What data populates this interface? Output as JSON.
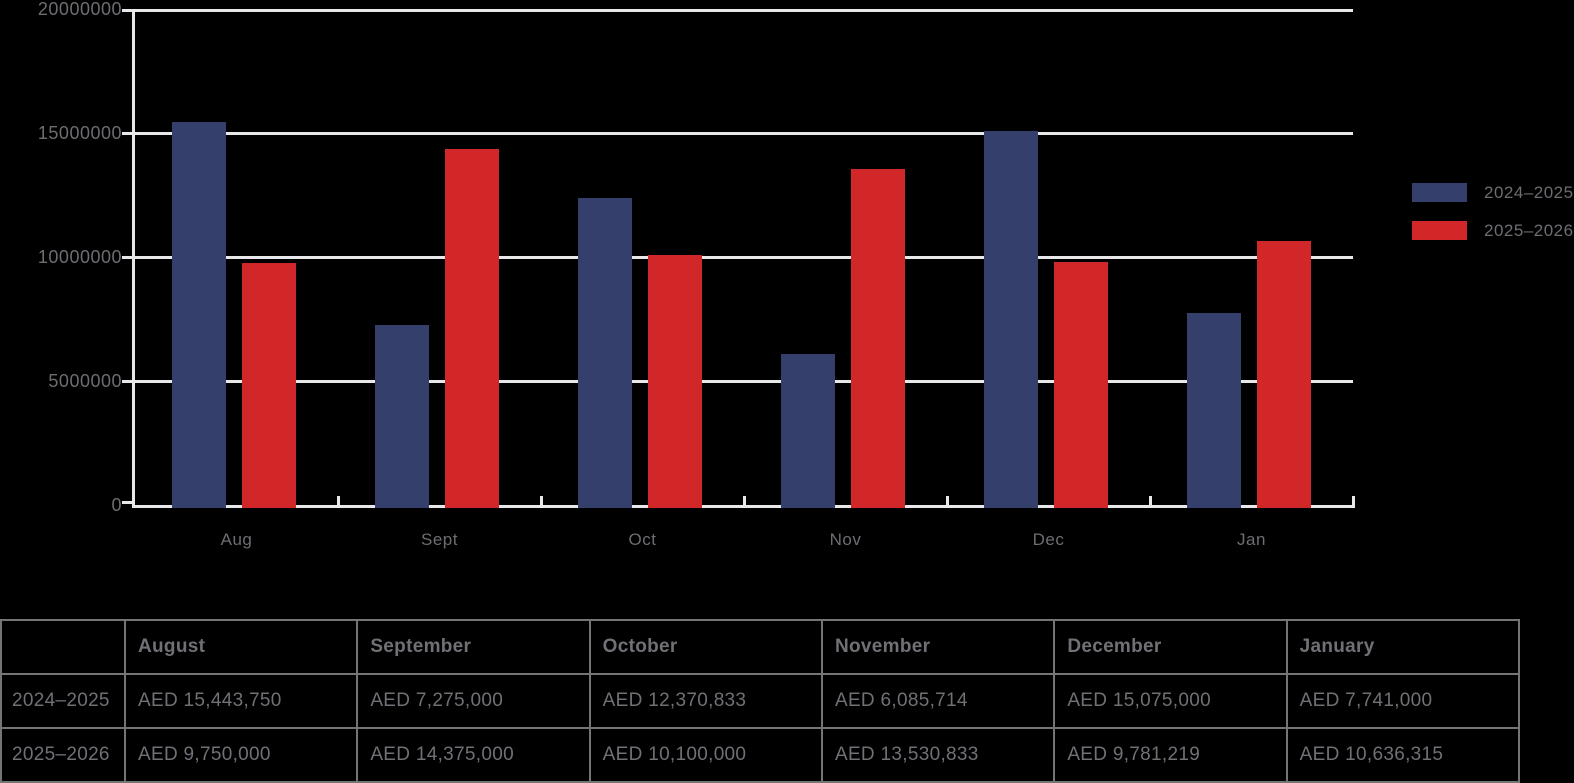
{
  "colors": {
    "background": "#000000",
    "axis": "#e8e8ea",
    "label": "#6d6d72",
    "table_text": "#707076",
    "table_border": "#757575",
    "series_blue": "#343f6c",
    "series_red": "#d22728"
  },
  "chart_data": {
    "type": "bar",
    "categories": [
      "Aug",
      "Sept",
      "Oct",
      "Nov",
      "Dec",
      "Jan"
    ],
    "series": [
      {
        "name": "2024–2025",
        "color": "#343f6c",
        "values": [
          15443750,
          7275000,
          12370833,
          6085714,
          15075000,
          7741000
        ]
      },
      {
        "name": "2025–2026",
        "color": "#d22728",
        "values": [
          9750000,
          14375000,
          10100000,
          13530833,
          9781219,
          10636315
        ]
      }
    ],
    "ylim": [
      0,
      20000000
    ],
    "yticks": [
      0,
      5000000,
      10000000,
      15000000,
      20000000
    ],
    "ytick_labels": [
      "0",
      "5000000",
      "10000000",
      "15000000",
      "20000000"
    ],
    "grid": true,
    "legend_position": "right"
  },
  "table": {
    "headers": [
      "",
      "August",
      "September",
      "October",
      "November",
      "December",
      "January"
    ],
    "rows": [
      {
        "label": "2024–2025",
        "values": [
          "AED 15,443,750",
          "AED 7,275,000",
          "AED 12,370,833",
          "AED 6,085,714",
          "AED 15,075,000",
          "AED 7,741,000"
        ]
      },
      {
        "label": "2025–2026",
        "values": [
          "AED 9,750,000",
          "AED 14,375,000",
          "AED 10,100,000",
          "AED 13,530,833",
          "AED 9,781,219",
          "AED 10,636,315"
        ]
      }
    ]
  }
}
